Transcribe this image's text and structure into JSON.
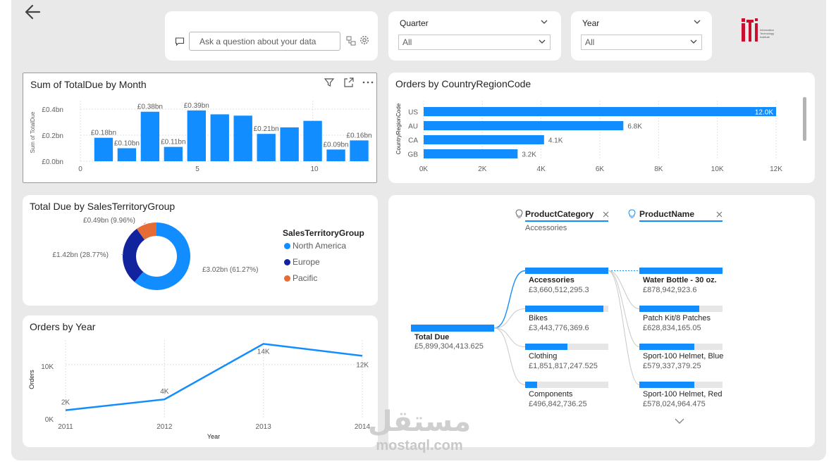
{
  "nav": {
    "back_icon": "arrow-left-icon"
  },
  "qa": {
    "placeholder": "Ask a question about your data"
  },
  "slicers": {
    "quarter": {
      "title": "Quarter",
      "value": "All"
    },
    "year": {
      "title": "Year",
      "value": "All"
    }
  },
  "logo": {
    "text_line1": "Information",
    "text_line2": "Technology",
    "text_line3": "Institute"
  },
  "colors": {
    "accent": "#118DFF",
    "dark_blue": "#12239E",
    "orange": "#E66C37",
    "background": "#E9E9E9"
  },
  "month_chart": {
    "title": "Sum of TotalDue by Month",
    "ylabel": "Sum of TotalDue",
    "y_ticks": [
      "£0.0bn",
      "£0.2bn",
      "£0.4bn"
    ],
    "x_ticks": [
      "0",
      "5",
      "10"
    ]
  },
  "country_chart": {
    "title": "Orders by CountryRegionCode",
    "ylabel": "CountryRegionCode",
    "x_ticks": [
      "0K",
      "2K",
      "4K",
      "6K",
      "8K",
      "10K",
      "12K"
    ]
  },
  "donut_chart": {
    "title": "Total Due by SalesTerritoryGroup",
    "legend_title": "SalesTerritoryGroup"
  },
  "year_chart": {
    "title": "Orders by Year",
    "xlabel": "Year",
    "ylabel": "Orders",
    "y_ticks": [
      "0K",
      "10K"
    ]
  },
  "decomp": {
    "level1_header": "ProductCategory",
    "level1_filter": "Accessories",
    "level2_header": "ProductName",
    "root": {
      "label": "Total Due",
      "value": "£5,899,304,413.625"
    },
    "categories": [
      {
        "label": "Accessories",
        "value": "£3,660,512,295.3",
        "share": 1.0
      },
      {
        "label": "Bikes",
        "value": "£3,443,776,369.6",
        "share": 0.94
      },
      {
        "label": "Clothing",
        "value": "£1,851,817,247.525",
        "share": 0.51
      },
      {
        "label": "Components",
        "value": "£496,842,736.25",
        "share": 0.14
      }
    ],
    "products": [
      {
        "label": "Water Bottle - 30 oz.",
        "value": "£878,942,923.6",
        "share": 1.0
      },
      {
        "label": "Patch Kit/8 Patches",
        "value": "£628,834,165.05",
        "share": 0.72
      },
      {
        "label": "Sport-100 Helmet, Blue",
        "value": "£579,337,379.25",
        "share": 0.66
      },
      {
        "label": "Sport-100 Helmet, Red",
        "value": "£578,024,964.475",
        "share": 0.66
      }
    ]
  },
  "watermark": {
    "arabic": "مستقل",
    "latin": "mostaql.com"
  },
  "chart_data": [
    {
      "type": "bar",
      "title": "Sum of TotalDue by Month",
      "xlabel": "",
      "ylabel": "Sum of TotalDue",
      "categories": [
        1,
        2,
        3,
        4,
        5,
        6,
        7,
        8,
        9,
        10,
        11,
        12
      ],
      "values": [
        0.18,
        0.1,
        0.38,
        0.11,
        0.39,
        0.36,
        0.35,
        0.21,
        0.26,
        0.31,
        0.09,
        0.16
      ],
      "data_labels": [
        "£0.18bn",
        "£0.10bn",
        "£0.38bn",
        "£0.11bn",
        "£0.39bn",
        "",
        "",
        "£0.21bn",
        "",
        "",
        "£0.09bn",
        "£0.16bn"
      ],
      "ylim": [
        0,
        0.4
      ],
      "xlim": [
        0,
        12.5
      ]
    },
    {
      "type": "bar",
      "orientation": "horizontal",
      "title": "Orders by CountryRegionCode",
      "ylabel": "CountryRegionCode",
      "categories": [
        "US",
        "AU",
        "CA",
        "GB"
      ],
      "values": [
        12000,
        6800,
        4100,
        3200
      ],
      "data_labels": [
        "12.0K",
        "6.8K",
        "4.1K",
        "3.2K"
      ],
      "xlim": [
        0,
        12000
      ]
    },
    {
      "type": "pie",
      "title": "Total Due by SalesTerritoryGroup",
      "categories": [
        "North America",
        "Europe",
        "Pacific"
      ],
      "values": [
        3.02,
        1.42,
        0.49
      ],
      "data_labels": [
        "£3.02bn (61.27%)",
        "£1.42bn (28.77%)",
        "£0.49bn (9.96%)"
      ],
      "legend": "right"
    },
    {
      "type": "line",
      "title": "Orders by Year",
      "xlabel": "Year",
      "ylabel": "Orders",
      "x": [
        "2011",
        "2012",
        "2013",
        "2014"
      ],
      "values": [
        1600,
        3600,
        13800,
        11600
      ],
      "data_labels": [
        "2K",
        "4K",
        "14K",
        "12K"
      ],
      "ylim": [
        0,
        14500
      ]
    }
  ]
}
